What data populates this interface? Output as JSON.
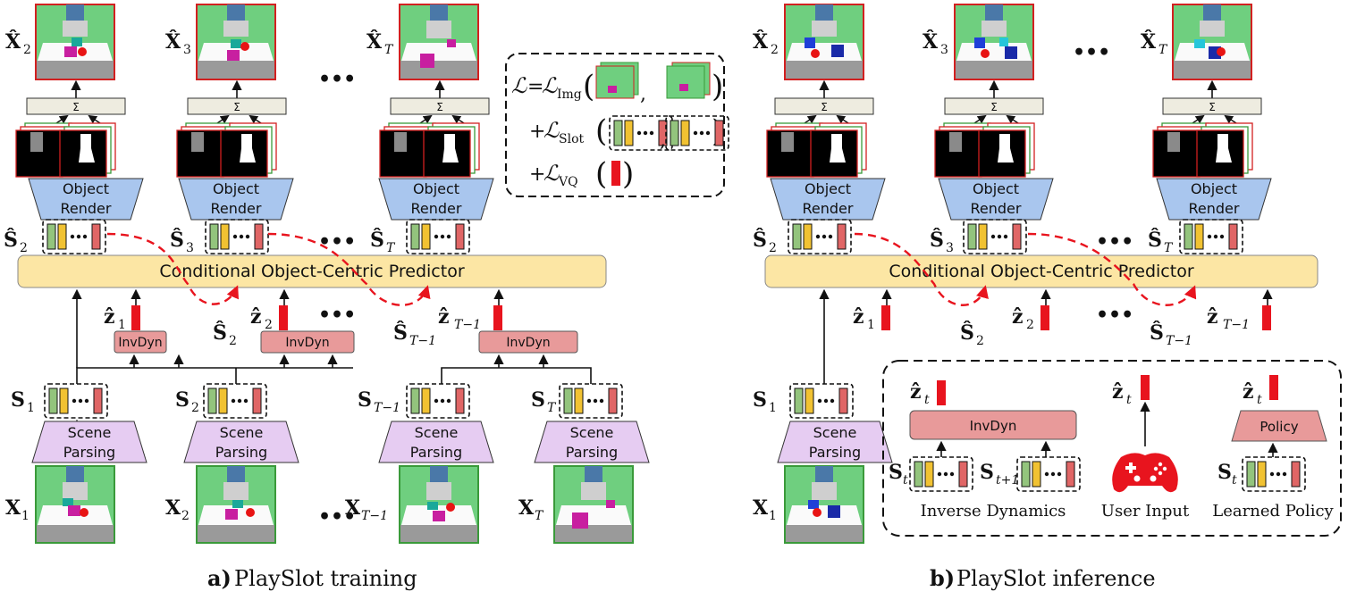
{
  "captions": {
    "training_bold": "a)",
    "training_text": " PlaySlot training",
    "inference_bold": "b)",
    "inference_text": " PlaySlot inference"
  },
  "modules": {
    "predictor": "Conditional Object-Centric Predictor",
    "invdyn": "InvDyn",
    "policy": "Policy",
    "object_render_line1": "Object",
    "object_render_line2": "Render",
    "scene_parsing_line1": "Scene",
    "scene_parsing_line2": "Parsing",
    "sum_symbol": "Σ",
    "ellipsis": "•••"
  },
  "symbols": {
    "x_hat": "X̂",
    "x": "X",
    "s_hat": "Ŝ",
    "s": "S",
    "z_hat": "ẑ",
    "sub_1": "1",
    "sub_2": "2",
    "sub_3": "3",
    "sub_T": "T",
    "sub_Tm1": "T−1",
    "sub_t": "t",
    "sub_tp1": "t+1"
  },
  "loss": {
    "L": "ℒ",
    "eq": "=",
    "plus": "+",
    "img_sub": "Img",
    "slot_sub": "Slot",
    "vq_sub": "VQ"
  },
  "action_sources": {
    "inverse_dynamics": "Inverse Dynamics",
    "user_input": "User Input",
    "learned_policy": "Learned Policy"
  },
  "colors": {
    "predictor_fill": "#fce6a4",
    "render_fill": "#a9c6ee",
    "parsing_fill": "#e6ccf2",
    "invdyn_fill": "#e89a9a",
    "sum_fill": "#eeece0",
    "action_red": "#e8141e",
    "frame_red": "#d22020",
    "frame_green": "#3a9a3a",
    "slot_green": "#93c47d",
    "slot_yellow": "#f1c232",
    "slot_red": "#e06666",
    "scene_green": "#6fcf7f"
  }
}
